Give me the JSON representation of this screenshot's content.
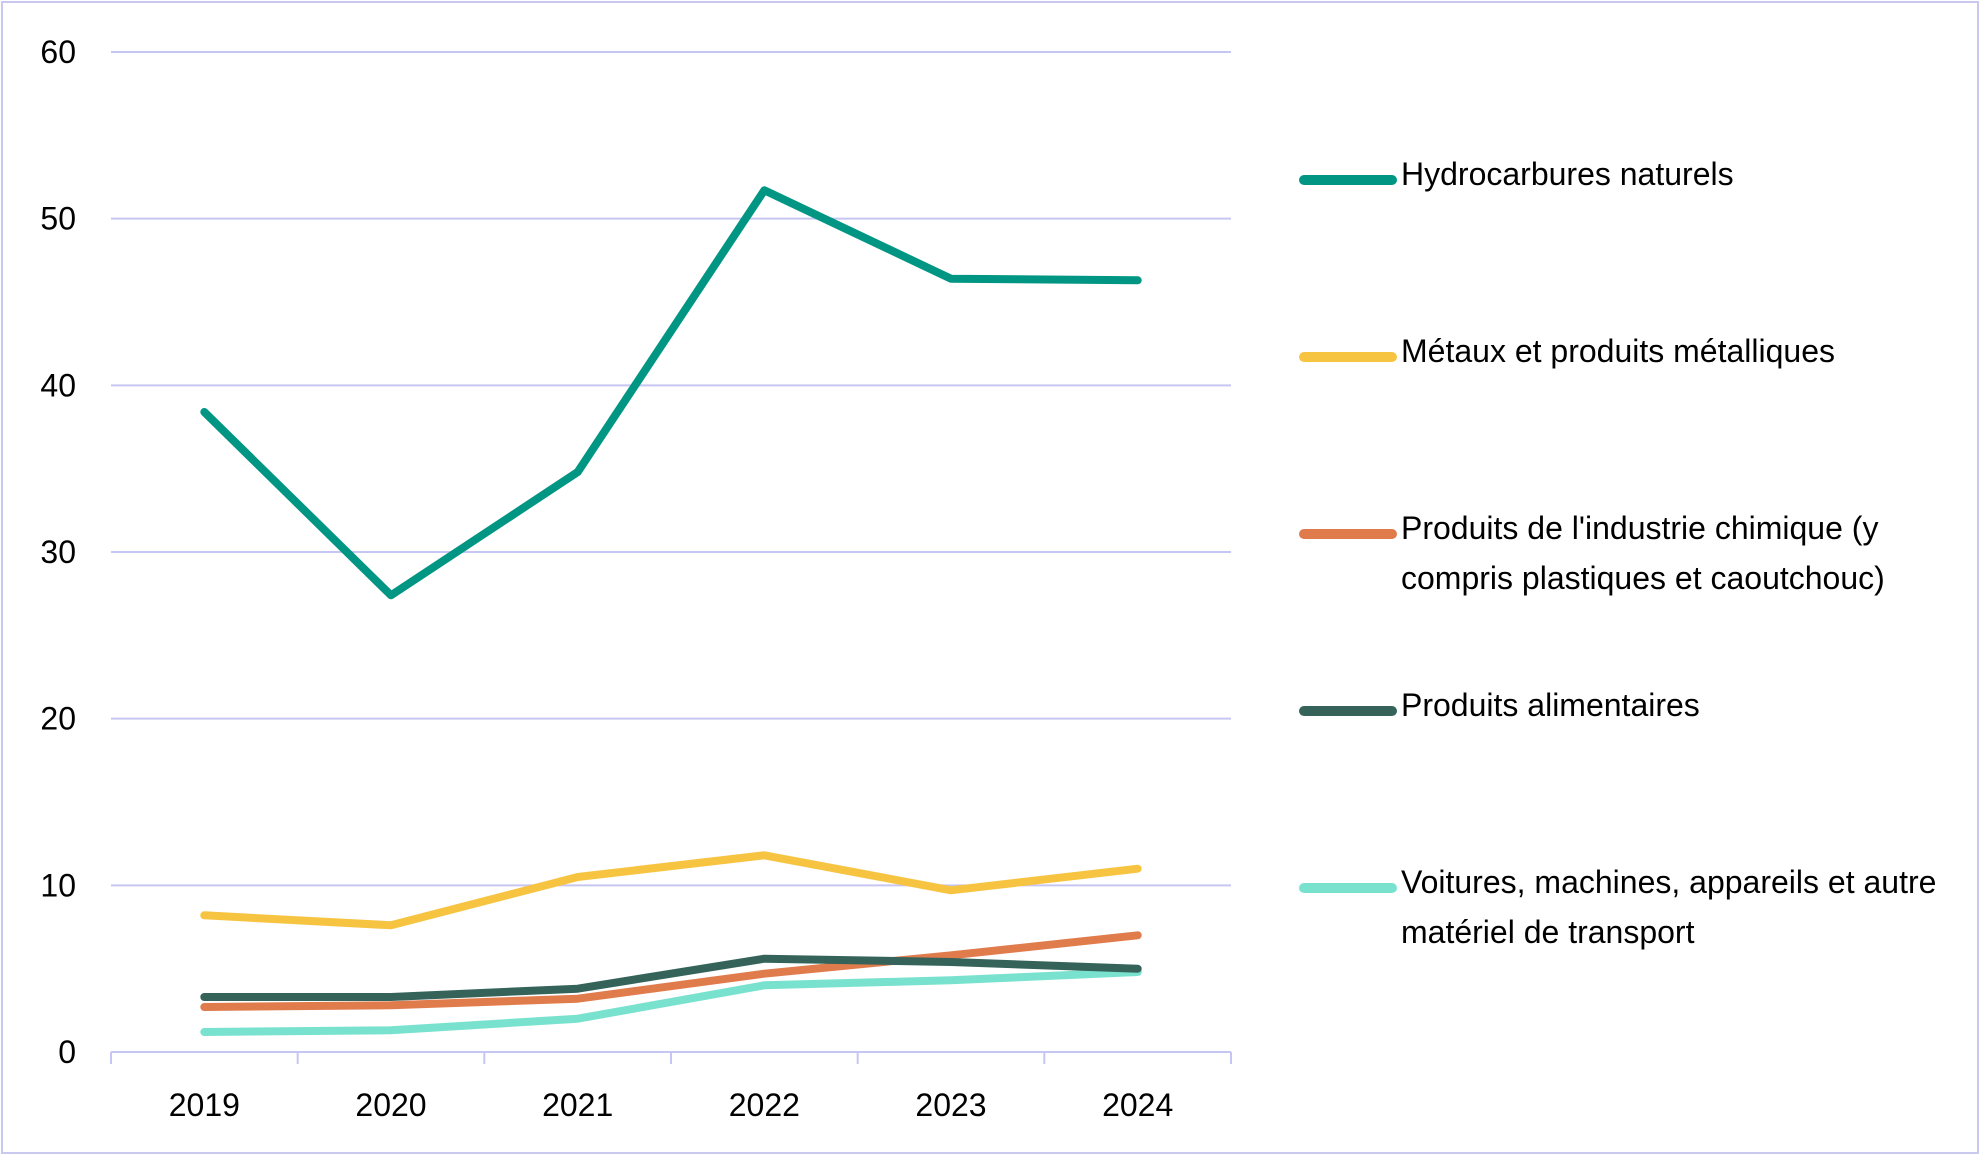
{
  "chart_data": {
    "type": "line",
    "x": [
      "2019",
      "2020",
      "2021",
      "2022",
      "2023",
      "2024"
    ],
    "ylim": [
      0,
      60
    ],
    "yticks": [
      "0",
      "10",
      "20",
      "30",
      "40",
      "50",
      "60"
    ],
    "grid": true,
    "legend_position": "right",
    "series": [
      {
        "name": "Hydrocarbures naturels",
        "color": "#009683",
        "values": [
          38.4,
          27.4,
          34.8,
          51.7,
          46.4,
          46.3
        ]
      },
      {
        "name": "Métaux et produits métalliques",
        "color": "#F7C442",
        "values": [
          8.2,
          7.6,
          10.5,
          11.8,
          9.7,
          11.0
        ]
      },
      {
        "name": "Produits de l'industrie chimique (y compris plastiques et caoutchouc)",
        "color": "#E07B4C",
        "values": [
          2.7,
          2.8,
          3.2,
          4.7,
          5.8,
          7.0
        ]
      },
      {
        "name": "Produits alimentaires",
        "color": "#35635A",
        "values": [
          3.3,
          3.3,
          3.8,
          5.6,
          5.4,
          5.0
        ]
      },
      {
        "name": "Voitures, machines, appareils et autre matériel de transport",
        "color": "#79E2CF",
        "values": [
          1.2,
          1.3,
          2.0,
          4.0,
          4.3,
          4.8
        ]
      }
    ]
  }
}
